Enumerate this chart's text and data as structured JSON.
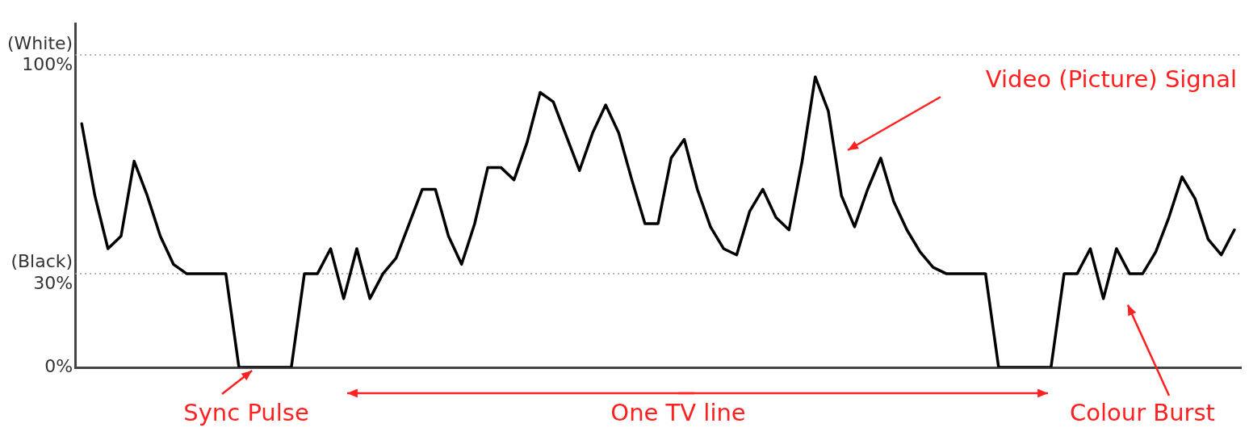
{
  "chart_data": {
    "type": "line",
    "categories": [
      null,
      null,
      null,
      null,
      null,
      null,
      null,
      null,
      null,
      null,
      null,
      null,
      null,
      null,
      null,
      null,
      null,
      null,
      null,
      null,
      null,
      null,
      null,
      null,
      null,
      null,
      null,
      null,
      null,
      null,
      null,
      null,
      null,
      null,
      null,
      null,
      null,
      null,
      null,
      null,
      null,
      null,
      null,
      null,
      null,
      null,
      null,
      null,
      null,
      null,
      null,
      null,
      null,
      null,
      null,
      null,
      null,
      null,
      null,
      null,
      null,
      null,
      null,
      null,
      null,
      null,
      null,
      null,
      null,
      null,
      null,
      null,
      null,
      null,
      null,
      null,
      null,
      null,
      null,
      null,
      null,
      null,
      null,
      null,
      null,
      null,
      null,
      null,
      null
    ],
    "values": [
      78,
      55,
      38,
      42,
      66,
      55,
      42,
      33,
      30,
      30,
      30,
      30,
      0,
      0,
      0,
      0,
      0,
      30,
      30,
      38,
      22,
      38,
      22,
      30,
      35,
      46,
      57,
      57,
      42,
      33,
      46,
      64,
      64,
      60,
      72,
      88,
      85,
      74,
      63,
      75,
      84,
      75,
      60,
      46,
      46,
      67,
      73,
      57,
      45,
      38,
      36,
      50,
      57,
      48,
      44,
      66,
      93,
      82,
      55,
      45,
      57,
      67,
      53,
      44,
      37,
      32,
      30,
      30,
      30,
      30,
      0,
      0,
      0,
      0,
      0,
      30,
      30,
      38,
      22,
      38,
      30,
      30,
      37,
      48,
      61,
      54,
      41,
      36,
      44
    ],
    "color": "#000000",
    "ylim": [
      0,
      110
    ],
    "yticks": [
      {
        "value": 0,
        "label": "0%"
      },
      {
        "value": 30,
        "label": "(Black)\n30%"
      },
      {
        "value": 100,
        "label": "(White)\n100%"
      }
    ],
    "ref_lines": [
      {
        "axis": "y",
        "value": 30,
        "label": null,
        "color": "#999999",
        "line_style": "dotted"
      },
      {
        "axis": "y",
        "value": 100,
        "label": null,
        "color": "#999999",
        "line_style": "dotted"
      }
    ],
    "annotations": [
      "Video (Picture) Signal",
      "Sync Pulse",
      "One TV line",
      "Colour Burst"
    ],
    "marker": "none",
    "line_style": "solid",
    "grid": false,
    "legend": false,
    "tick_labels": "y"
  }
}
